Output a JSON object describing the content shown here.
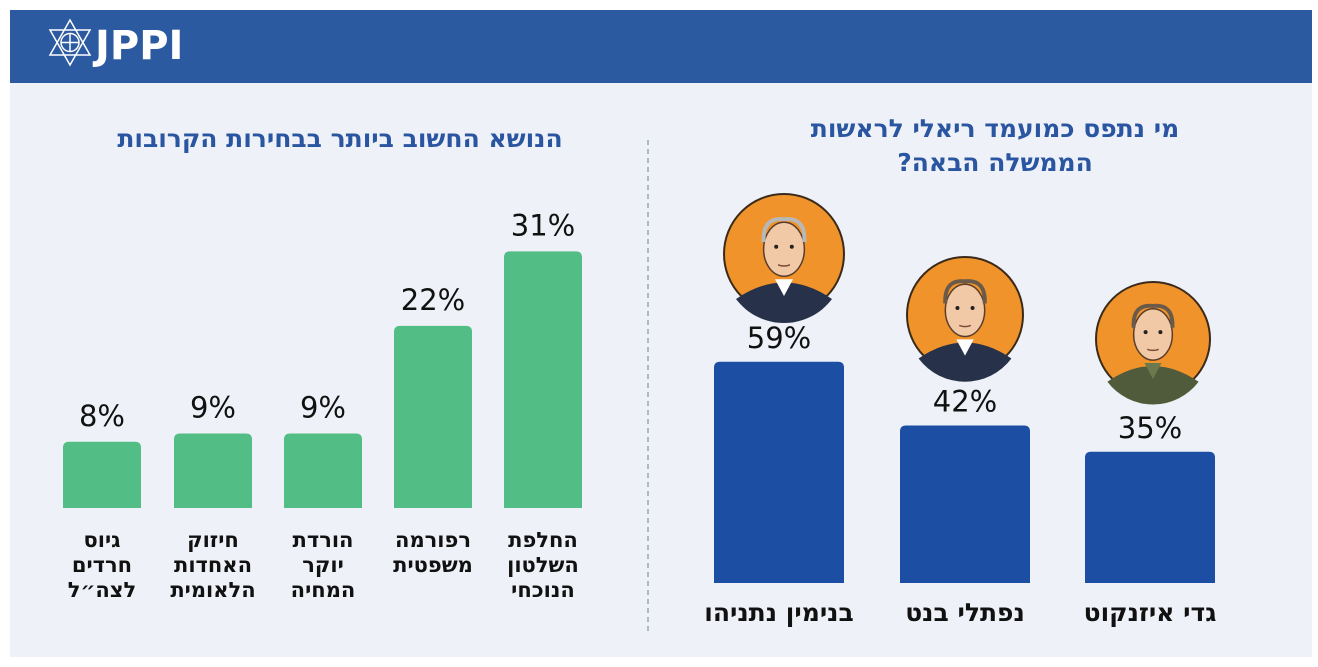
{
  "header": {
    "logo": "JPPI"
  },
  "chart_data": [
    {
      "type": "bar",
      "title": "הנושא החשוב ביותר בבחירות הקרובות",
      "color": "#52bd85",
      "categories": [
        [
          "גיוס",
          "חרדים",
          "לצה״ל"
        ],
        [
          "חיזוק",
          "האחדות",
          "הלאומית"
        ],
        [
          "הורדת",
          "יוקר",
          "המחיה"
        ],
        [
          "רפורמה",
          "משפטית"
        ],
        [
          "החלפת",
          "השלטון",
          "הנוכחי"
        ]
      ],
      "values": [
        8,
        9,
        9,
        22,
        31
      ],
      "value_labels": [
        "8%",
        "9%",
        "9%",
        "22%",
        "31%"
      ]
    },
    {
      "type": "bar",
      "title": [
        "מי נתפס כמועמד ריאלי לראשות",
        "הממשלה הבאה?"
      ],
      "color": "#1c4ea3",
      "categories": [
        "בנימין נתניהו",
        "נפתלי בנט",
        "גדי איזנקוט"
      ],
      "values": [
        59,
        42,
        35
      ],
      "value_labels": [
        "59%",
        "42%",
        "35%"
      ]
    }
  ]
}
